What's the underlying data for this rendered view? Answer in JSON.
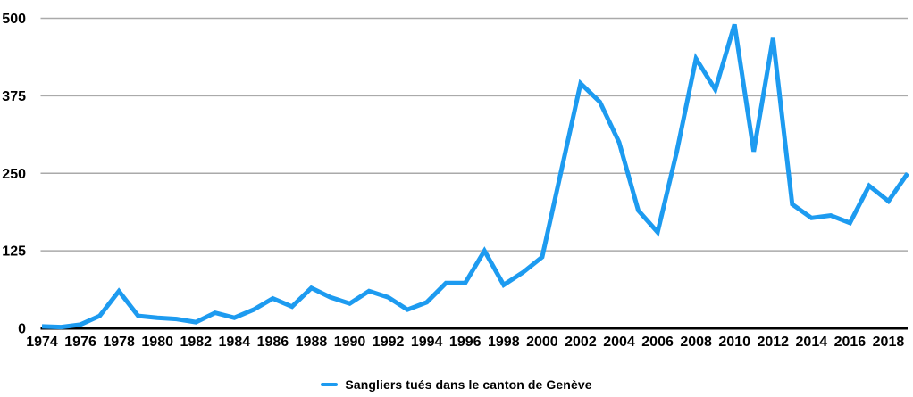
{
  "colors": {
    "series_blue": "#1d9bf0",
    "gridline_gray": "#aaaaaa",
    "axis_black": "#000000",
    "text_black": "#000000",
    "background": "#ffffff"
  },
  "legend": {
    "label": "Sangliers tués dans le canton de Genève"
  },
  "chart_data": {
    "type": "line",
    "title": "",
    "xlabel": "",
    "ylabel": "",
    "x": [
      1974,
      1975,
      1976,
      1977,
      1978,
      1979,
      1980,
      1981,
      1982,
      1983,
      1984,
      1985,
      1986,
      1987,
      1988,
      1989,
      1990,
      1991,
      1992,
      1993,
      1994,
      1995,
      1996,
      1997,
      1998,
      1999,
      2000,
      2001,
      2002,
      2003,
      2004,
      2005,
      2006,
      2007,
      2008,
      2009,
      2010,
      2011,
      2012,
      2013,
      2014,
      2015,
      2016,
      2017,
      2018,
      2019
    ],
    "series": [
      {
        "name": "Sangliers tués dans le canton de Genève",
        "color": "#1d9bf0",
        "values": [
          3,
          2,
          6,
          20,
          60,
          20,
          17,
          15,
          10,
          25,
          17,
          30,
          48,
          35,
          65,
          50,
          40,
          60,
          50,
          30,
          42,
          73,
          73,
          125,
          70,
          90,
          115,
          255,
          395,
          365,
          300,
          190,
          155,
          285,
          435,
          385,
          490,
          285,
          468,
          200,
          178,
          182,
          170,
          230,
          205,
          250
        ]
      }
    ],
    "ylim": [
      0,
      500
    ],
    "yticks": [
      0,
      125,
      250,
      375,
      500
    ],
    "xticks": [
      1974,
      1976,
      1978,
      1980,
      1982,
      1984,
      1986,
      1988,
      1990,
      1992,
      1994,
      1996,
      1998,
      2000,
      2002,
      2004,
      2006,
      2008,
      2010,
      2012,
      2014,
      2016,
      2018
    ],
    "grid": true,
    "legend_position": "bottom"
  }
}
